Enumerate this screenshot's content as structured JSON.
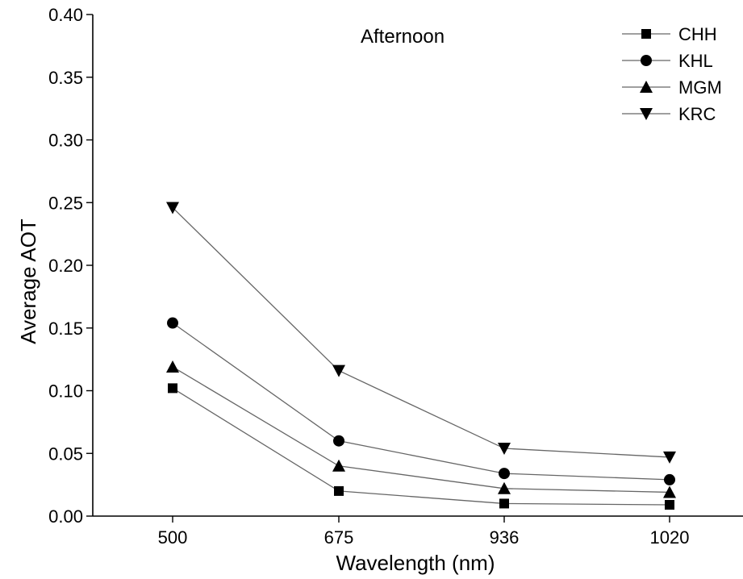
{
  "chart_data": {
    "type": "line",
    "annotation": "Afternoon",
    "xlabel": "Wavelength (nm)",
    "ylabel": "Average AOT",
    "categories": [
      "500",
      "675",
      "936",
      "1020"
    ],
    "ylim": [
      0,
      0.4
    ],
    "yticks": [
      "0.00",
      "0.05",
      "0.10",
      "0.15",
      "0.20",
      "0.25",
      "0.30",
      "0.35",
      "0.40"
    ],
    "legend_position": "top-right",
    "grid": false,
    "series": [
      {
        "name": "CHH",
        "marker": "square",
        "values": [
          0.102,
          0.02,
          0.01,
          0.009
        ]
      },
      {
        "name": "KHL",
        "marker": "circle",
        "values": [
          0.154,
          0.06,
          0.034,
          0.029
        ]
      },
      {
        "name": "MGM",
        "marker": "triangle-up",
        "values": [
          0.119,
          0.04,
          0.022,
          0.019
        ]
      },
      {
        "name": "KRC",
        "marker": "triangle-down",
        "values": [
          0.246,
          0.116,
          0.054,
          0.047
        ]
      }
    ],
    "colors": {
      "line": "#666666",
      "marker": "#000000"
    }
  }
}
